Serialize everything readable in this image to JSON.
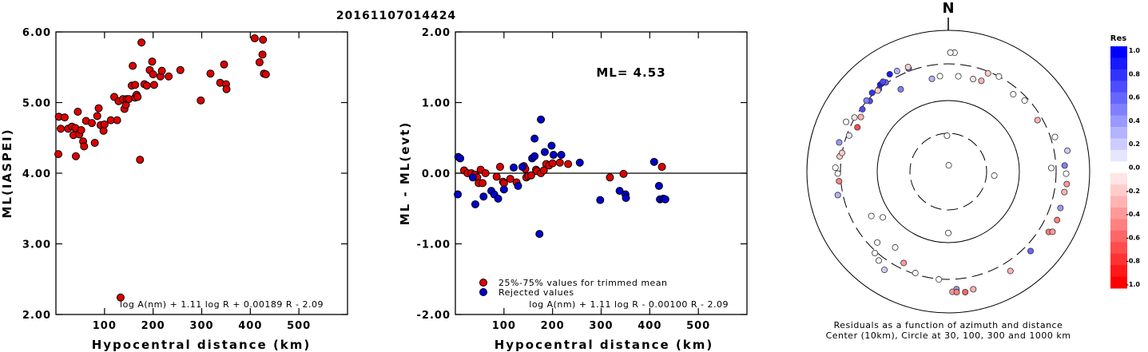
{
  "title": "20161107014424",
  "chart_data": [
    {
      "type": "scatter",
      "xlabel": "Hypocentral distance (km)",
      "ylabel": "ML(IASPEI)",
      "xlim": [
        0,
        600
      ],
      "ylim": [
        2.0,
        6.0
      ],
      "xticks": [
        "100",
        "200",
        "300",
        "400",
        "500"
      ],
      "yticks": [
        "2.00",
        "3.00",
        "4.00",
        "5.00",
        "6.00"
      ],
      "grid": false,
      "annotation": "log A(nm) + 1.11 log R + 0.00189 R - 2.09",
      "series": [
        {
          "color": "#dd0000",
          "points": [
            [
              5,
              4.27
            ],
            [
              6,
              4.8
            ],
            [
              10,
              4.63
            ],
            [
              18,
              4.79
            ],
            [
              25,
              4.63
            ],
            [
              33,
              4.66
            ],
            [
              36,
              4.54
            ],
            [
              40,
              4.64
            ],
            [
              41,
              4.24
            ],
            [
              45,
              4.87
            ],
            [
              48,
              4.55
            ],
            [
              52,
              4.61
            ],
            [
              56,
              4.45
            ],
            [
              58,
              4.38
            ],
            [
              62,
              4.74
            ],
            [
              74,
              4.71
            ],
            [
              80,
              4.43
            ],
            [
              85,
              4.81
            ],
            [
              88,
              4.92
            ],
            [
              92,
              4.68
            ],
            [
              98,
              4.6
            ],
            [
              100,
              4.69
            ],
            [
              113,
              4.75
            ],
            [
              120,
              5.08
            ],
            [
              126,
              4.75
            ],
            [
              129,
              5.02
            ],
            [
              138,
              5.05
            ],
            [
              141,
              4.91
            ],
            [
              144,
              4.97
            ],
            [
              146,
              5.05
            ],
            [
              150,
              5.05
            ],
            [
              156,
              5.24
            ],
            [
              158,
              5.52
            ],
            [
              163,
              5.07
            ],
            [
              163,
              5.25
            ],
            [
              166,
              5.11
            ],
            [
              168,
              5.08
            ],
            [
              173,
              4.19
            ],
            [
              176,
              5.85
            ],
            [
              182,
              5.26
            ],
            [
              187,
              5.24
            ],
            [
              193,
              5.46
            ],
            [
              198,
              5.58
            ],
            [
              200,
              5.4
            ],
            [
              202,
              5.25
            ],
            [
              215,
              5.37
            ],
            [
              218,
              5.45
            ],
            [
              232,
              5.37
            ],
            [
              256,
              5.46
            ],
            [
              298,
              5.03
            ],
            [
              318,
              5.41
            ],
            [
              338,
              5.28
            ],
            [
              346,
              5.54
            ],
            [
              350,
              5.26
            ],
            [
              351,
              5.19
            ],
            [
              409,
              5.91
            ],
            [
              419,
              5.57
            ],
            [
              425,
              5.68
            ],
            [
              426,
              5.89
            ],
            [
              428,
              5.41
            ],
            [
              432,
              5.4
            ],
            [
              133,
              2.24
            ]
          ]
        }
      ]
    },
    {
      "type": "scatter",
      "xlabel": "Hypocentral distance (km)",
      "ylabel": "ML - ML(evt)",
      "xlim": [
        0,
        600
      ],
      "ylim": [
        -2.0,
        2.0
      ],
      "xticks": [
        "100",
        "200",
        "300",
        "400",
        "500"
      ],
      "yticks": [
        "-2.00",
        "-1.00",
        "0.00",
        "1.00",
        "2.00"
      ],
      "reference_line": 0.0,
      "grid": false,
      "text": "ML= 4.53",
      "legend": [
        "25%-75% values for trimmed mean",
        "Rejected values"
      ],
      "legend_position": "bottom",
      "annotation": "log A(nm) + 1.11 log R - 0.00100 R - 2.09",
      "series": [
        {
          "name": "25%-75% values for trimmed mean",
          "color": "#dd0000",
          "points": [
            [
              18,
              0.04
            ],
            [
              25,
              0.0
            ],
            [
              33,
              0.0
            ],
            [
              40,
              -0.02
            ],
            [
              45,
              -0.06
            ],
            [
              48,
              -0.14
            ],
            [
              52,
              0.05
            ],
            [
              56,
              -0.14
            ],
            [
              62,
              0.0
            ],
            [
              85,
              -0.05
            ],
            [
              92,
              0.09
            ],
            [
              98,
              -0.12
            ],
            [
              100,
              -0.14
            ],
            [
              113,
              -0.08
            ],
            [
              126,
              -0.13
            ],
            [
              141,
              0.1
            ],
            [
              144,
              0.06
            ],
            [
              146,
              -0.06
            ],
            [
              150,
              -0.04
            ],
            [
              156,
              -0.03
            ],
            [
              166,
              0.05
            ],
            [
              168,
              0.03
            ],
            [
              176,
              0.0
            ],
            [
              182,
              0.04
            ],
            [
              187,
              0.13
            ],
            [
              193,
              0.11
            ],
            [
              200,
              0.14
            ],
            [
              215,
              0.15
            ],
            [
              232,
              0.13
            ],
            [
              318,
              -0.06
            ],
            [
              346,
              -0.01
            ],
            [
              425,
              0.09
            ]
          ]
        },
        {
          "name": "Rejected values",
          "color": "#0000cc",
          "points": [
            [
              5,
              -0.3
            ],
            [
              6,
              0.23
            ],
            [
              10,
              0.21
            ],
            [
              36,
              -0.06
            ],
            [
              41,
              -0.44
            ],
            [
              58,
              -0.33
            ],
            [
              74,
              -0.25
            ],
            [
              80,
              -0.3
            ],
            [
              88,
              -0.36
            ],
            [
              120,
              0.08
            ],
            [
              100,
              -0.23
            ],
            [
              129,
              -0.18
            ],
            [
              138,
              0.09
            ],
            [
              158,
              0.21
            ],
            [
              163,
              0.49
            ],
            [
              163,
              0.24
            ],
            [
              173,
              -0.86
            ],
            [
              176,
              0.76
            ],
            [
              184,
              0.3
            ],
            [
              198,
              0.39
            ],
            [
              202,
              0.26
            ],
            [
              218,
              0.26
            ],
            [
              256,
              0.15
            ],
            [
              298,
              -0.38
            ],
            [
              338,
              -0.25
            ],
            [
              350,
              -0.3
            ],
            [
              351,
              -0.35
            ],
            [
              409,
              0.16
            ],
            [
              419,
              -0.18
            ],
            [
              421,
              -0.37
            ],
            [
              428,
              -0.36
            ],
            [
              432,
              -0.37
            ]
          ]
        }
      ]
    },
    {
      "type": "scatter",
      "title": "N",
      "caption_line1": "Residuals as a function of azimuth and distance",
      "caption_line2": "Center (10km), Circle at 30, 100, 300 and 1000 km",
      "colorbar_title": "Res",
      "colorbar_ticks": [
        "1.0",
        "0.8",
        "0.6",
        "0.4",
        "0.2",
        "0.0",
        "-0.2",
        "-0.4",
        "-0.6",
        "-0.8",
        "-1.0"
      ],
      "points_azimuth_distance_residual": [
        [
          4,
          12,
          0.0
        ],
        [
          358,
          28,
          0.0
        ],
        [
          95,
          40,
          0.0
        ],
        [
          180,
          70,
          0.0
        ],
        [
          350,
          200,
          0.3
        ],
        [
          355,
          210,
          0.0
        ],
        [
          20,
          215,
          -0.3
        ],
        [
          15,
          210,
          -0.1
        ],
        [
          330,
          205,
          0.5
        ],
        [
          300,
          305,
          -0.1
        ],
        [
          312,
          280,
          0.7
        ],
        [
          320,
          300,
          0.7
        ],
        [
          325,
          312,
          0.6
        ],
        [
          322,
          330,
          0.9
        ],
        [
          324,
          338,
          0.7
        ],
        [
          316,
          320,
          0.8
        ],
        [
          311,
          306,
          0.5
        ],
        [
          306,
          285,
          0.7
        ],
        [
          302,
          260,
          -0.3
        ],
        [
          296,
          245,
          -0.7
        ],
        [
          290,
          280,
          0.1
        ],
        [
          285,
          360,
          0.4
        ],
        [
          278,
          320,
          -0.2
        ],
        [
          272,
          360,
          0.0
        ],
        [
          265,
          320,
          -0.5
        ],
        [
          258,
          360,
          0.3
        ],
        [
          240,
          170,
          0.0
        ],
        [
          235,
          130,
          0.0
        ],
        [
          225,
          240,
          0.0
        ],
        [
          222,
          320,
          0.0
        ],
        [
          215,
          190,
          0.0
        ],
        [
          213,
          420,
          0.2
        ],
        [
          206,
          250,
          -0.4
        ],
        [
          218,
          360,
          0.0
        ],
        [
          198,
          290,
          0.0
        ],
        [
          185,
          305,
          0.0
        ],
        [
          176,
          430,
          0.4
        ],
        [
          178,
          470,
          -0.4
        ],
        [
          176,
          480,
          -0.5
        ],
        [
          172,
          495,
          -0.6
        ],
        [
          168,
          470,
          -0.3
        ],
        [
          148,
          420,
          -0.3
        ],
        [
          134,
          380,
          0.6
        ],
        [
          121,
          420,
          -0.5
        ],
        [
          120,
          470,
          -0.4
        ],
        [
          114,
          450,
          -0.5
        ],
        [
          108,
          430,
          0.4
        ],
        [
          100,
          430,
          -0.3
        ],
        [
          96,
          450,
          -0.4
        ],
        [
          91,
          430,
          0.0
        ],
        [
          87,
          410,
          0.5
        ],
        [
          80,
          480,
          0.2
        ],
        [
          72,
          350,
          0.0
        ],
        [
          60,
          260,
          -0.3
        ],
        [
          47,
          270,
          0.0
        ],
        [
          40,
          245,
          0.0
        ],
        [
          88,
          260,
          0.0
        ],
        [
          28,
          300,
          0.0
        ],
        [
          22,
          285,
          -0.2
        ],
        [
          6,
          210,
          0.0
        ],
        [
          3,
          450,
          0.0
        ],
        [
          1,
          450,
          0.0
        ],
        [
          339,
          330,
          0.6
        ],
        [
          333,
          360,
          0.3
        ],
        [
          329,
          370,
          0.9
        ],
        [
          339,
          350,
          -0.2
        ],
        [
          319,
          296,
          -0.2
        ],
        [
          296,
          370,
          0.0
        ],
        [
          280,
          300,
          -0.2
        ],
        [
          269,
          330,
          0.0
        ]
      ]
    }
  ]
}
